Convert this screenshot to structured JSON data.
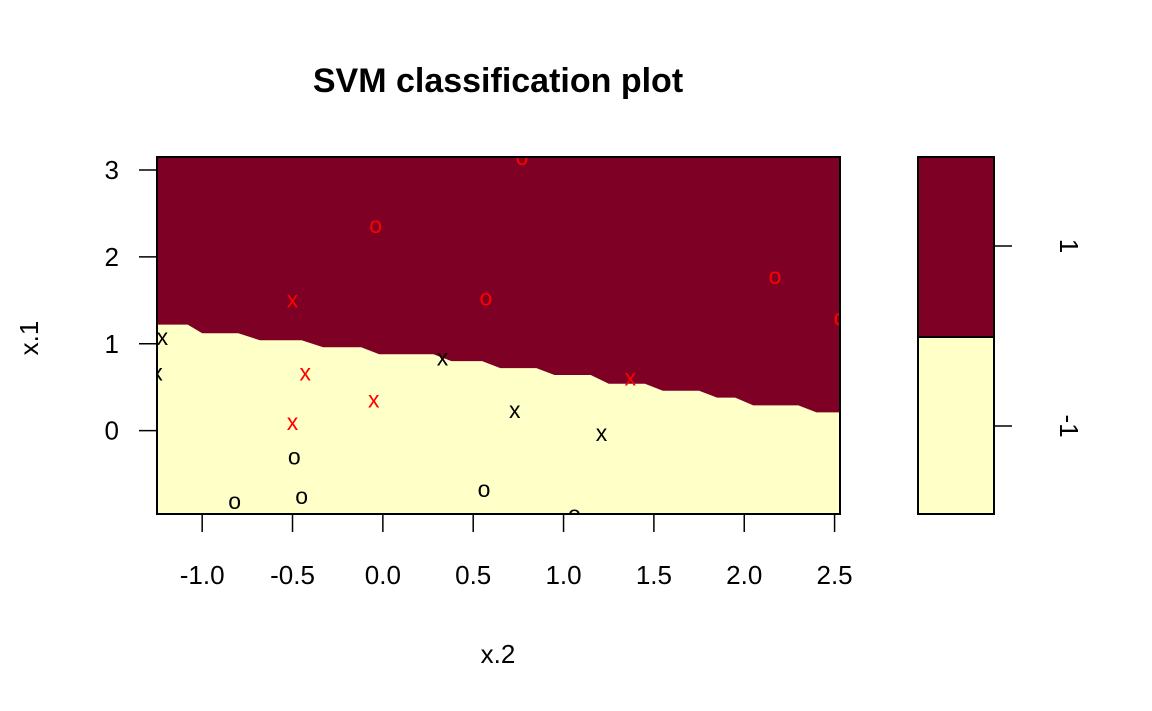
{
  "chart_data": {
    "type": "scatter",
    "title": "SVM classification plot",
    "xlabel": "x.2",
    "ylabel": "x.1",
    "xlim": [
      -1.25,
      2.53
    ],
    "ylim": [
      -0.96,
      3.15
    ],
    "x_ticks": [
      -1.0,
      -0.5,
      0.0,
      0.5,
      1.0,
      1.5,
      2.0,
      2.5
    ],
    "x_tick_labels": [
      "-1.0",
      "-0.5",
      "0.0",
      "0.5",
      "1.0",
      "1.5",
      "2.0",
      "2.5"
    ],
    "y_ticks": [
      0,
      1,
      2,
      3
    ],
    "y_tick_labels": [
      "0",
      "1",
      "2",
      "3"
    ],
    "grid": false,
    "region_colors": {
      "1": "#7f0025",
      "-1": "#ffffc8"
    },
    "decision_boundary": [
      [
        -1.25,
        1.22
      ],
      [
        -1.08,
        1.22
      ],
      [
        -1.0,
        1.12
      ],
      [
        -0.8,
        1.12
      ],
      [
        -0.68,
        1.04
      ],
      [
        -0.45,
        1.04
      ],
      [
        -0.33,
        0.96
      ],
      [
        -0.12,
        0.96
      ],
      [
        -0.02,
        0.88
      ],
      [
        0.28,
        0.88
      ],
      [
        0.38,
        0.8
      ],
      [
        0.55,
        0.8
      ],
      [
        0.65,
        0.72
      ],
      [
        0.85,
        0.72
      ],
      [
        0.95,
        0.64
      ],
      [
        1.15,
        0.64
      ],
      [
        1.25,
        0.54
      ],
      [
        1.45,
        0.54
      ],
      [
        1.55,
        0.46
      ],
      [
        1.75,
        0.46
      ],
      [
        1.85,
        0.38
      ],
      [
        1.95,
        0.38
      ],
      [
        2.05,
        0.29
      ],
      [
        2.3,
        0.29
      ],
      [
        2.4,
        0.21
      ],
      [
        2.53,
        0.21
      ]
    ],
    "points": [
      {
        "x": 0.77,
        "y": 3.15,
        "label": "o",
        "color": "#ff0000"
      },
      {
        "x": -0.04,
        "y": 2.37,
        "label": "o",
        "color": "#ff0000"
      },
      {
        "x": -0.5,
        "y": 1.51,
        "label": "x",
        "color": "#ff0000"
      },
      {
        "x": 0.57,
        "y": 1.53,
        "label": "o",
        "color": "#ff0000"
      },
      {
        "x": 2.17,
        "y": 1.78,
        "label": "o",
        "color": "#ff0000"
      },
      {
        "x": 2.53,
        "y": 1.3,
        "label": "o",
        "color": "#ff0000"
      },
      {
        "x": -1.22,
        "y": 1.08,
        "label": "x",
        "color": "#000000"
      },
      {
        "x": -1.25,
        "y": 0.67,
        "label": "x",
        "color": "#000000"
      },
      {
        "x": 0.33,
        "y": 0.84,
        "label": "x",
        "color": "#000000"
      },
      {
        "x": -0.43,
        "y": 0.67,
        "label": "x",
        "color": "#ff0000"
      },
      {
        "x": -0.05,
        "y": 0.36,
        "label": "x",
        "color": "#ff0000"
      },
      {
        "x": 1.37,
        "y": 0.61,
        "label": "x",
        "color": "#ff0000"
      },
      {
        "x": -0.5,
        "y": 0.1,
        "label": "x",
        "color": "#ff0000"
      },
      {
        "x": 0.73,
        "y": 0.24,
        "label": "x",
        "color": "#000000"
      },
      {
        "x": 1.21,
        "y": -0.03,
        "label": "x",
        "color": "#000000"
      },
      {
        "x": -0.49,
        "y": -0.3,
        "label": "o",
        "color": "#000000"
      },
      {
        "x": -0.45,
        "y": -0.75,
        "label": "o",
        "color": "#000000"
      },
      {
        "x": -0.82,
        "y": -0.81,
        "label": "o",
        "color": "#000000"
      },
      {
        "x": 0.56,
        "y": -0.67,
        "label": "o",
        "color": "#000000"
      },
      {
        "x": 1.06,
        "y": -0.96,
        "label": "o",
        "color": "#000000"
      }
    ],
    "legend": {
      "placement": "right",
      "levels": [
        {
          "label": "1",
          "color": "#7f0025"
        },
        {
          "label": "-1",
          "color": "#ffffc8"
        }
      ]
    }
  }
}
